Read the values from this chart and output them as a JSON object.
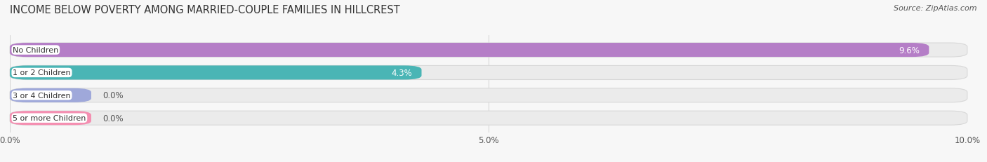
{
  "title": "INCOME BELOW POVERTY AMONG MARRIED-COUPLE FAMILIES IN HILLCREST",
  "source": "Source: ZipAtlas.com",
  "categories": [
    "No Children",
    "1 or 2 Children",
    "3 or 4 Children",
    "5 or more Children"
  ],
  "values": [
    9.6,
    4.3,
    0.0,
    0.0
  ],
  "bar_colors": [
    "#b57ec7",
    "#4ab5b5",
    "#9fa8da",
    "#f48fb1"
  ],
  "xlim": [
    0,
    10.0
  ],
  "xticks": [
    0.0,
    5.0,
    10.0
  ],
  "xticklabels": [
    "0.0%",
    "5.0%",
    "10.0%"
  ],
  "title_fontsize": 10.5,
  "bar_height": 0.62,
  "bar_gap": 1.0,
  "background_color": "#f7f7f7",
  "bar_bg_color": "#ebebeb",
  "bar_border_color": "#d8d8d8",
  "value_label_fontsize": 8.5,
  "cat_label_fontsize": 8.0,
  "source_fontsize": 8.0
}
